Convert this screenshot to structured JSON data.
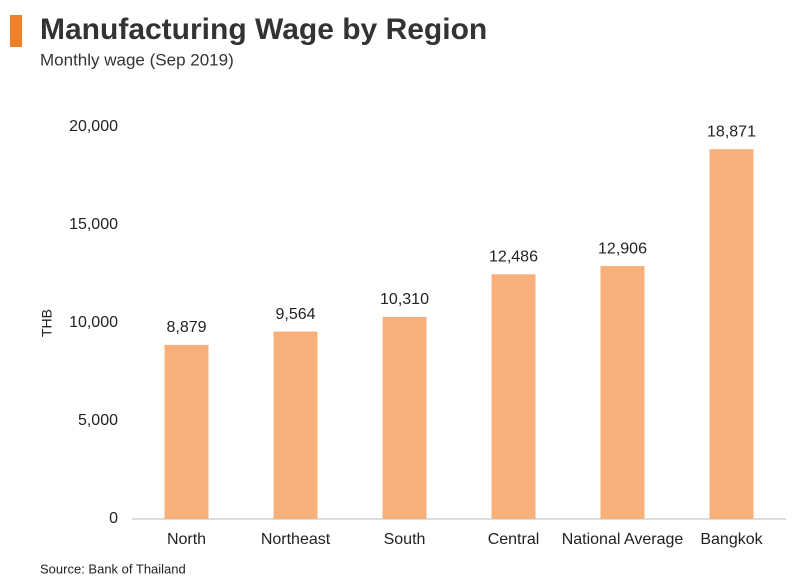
{
  "chart_data": {
    "type": "bar",
    "title": "Manufacturing Wage by Region",
    "subtitle": "Monthly wage (Sep 2019)",
    "y_label": "THB",
    "source": "Source: Bank of Thailand",
    "categories": [
      "North",
      "Northeast",
      "South",
      "Central",
      "National Average",
      "Bangkok"
    ],
    "values": [
      8879,
      9564,
      10310,
      12486,
      12906,
      18871
    ],
    "value_labels": [
      "8,879",
      "9,564",
      "10,310",
      "12,486",
      "12,906",
      "18,871"
    ],
    "color": "#f8b07b",
    "ylim": [
      0,
      20000
    ],
    "yticks": [
      0,
      {
        "value": 5000,
        "label": "5,000"
      },
      {
        "value": 10000,
        "label": "10,000"
      },
      {
        "value": 15000,
        "label": "15,000"
      },
      {
        "value": 20000,
        "label": "20,000"
      }
    ],
    "grid": false
  }
}
